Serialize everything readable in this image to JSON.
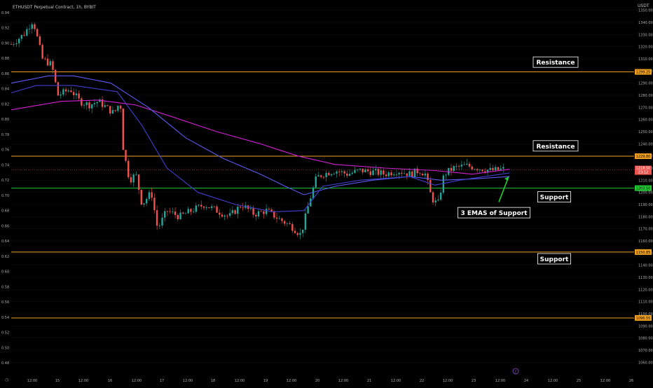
{
  "header": {
    "symbol": "ETHUSDT Perpetual Contract, 1h, BYBIT",
    "currency": "USDT"
  },
  "chart_data": {
    "type": "candlestick",
    "ylim": [
      1055,
      1355
    ],
    "right_ticks": [
      1350,
      1340,
      1330,
      1320,
      1310,
      1300,
      1290,
      1280,
      1270,
      1260,
      1250,
      1240,
      1230,
      1220,
      1210,
      1200,
      1190,
      1180,
      1170,
      1160,
      1150,
      1140,
      1130,
      1120,
      1110,
      1100,
      1090,
      1080,
      1070,
      1060
    ],
    "left_ticks": [
      "0.94",
      "0.92",
      "0.90",
      "0.88",
      "0.86",
      "0.84",
      "0.82",
      "0.80",
      "0.78",
      "0.76",
      "0.74",
      "0.72",
      "0.70",
      "0.68",
      "0.66",
      "0.64",
      "0.62",
      "0.60",
      "0.58",
      "0.56",
      "0.54",
      "0.52",
      "0.50",
      "0.48"
    ],
    "x_ticks": [
      "12:00",
      "15",
      "12:00",
      "16",
      "12:00",
      "17",
      "12:00",
      "18",
      "12:00",
      "19",
      "12:00",
      "20",
      "12:00",
      "21",
      "12:00",
      "22",
      "12:00",
      "23",
      "12:00",
      "24",
      "12:00",
      "25",
      "12:00",
      "26"
    ],
    "price_lines": [
      {
        "price": 1299.25,
        "label": "1299.25",
        "color": "#f0a020"
      },
      {
        "price": 1229.8,
        "label": "1229.80",
        "color": "#f0a020"
      },
      {
        "price": 1203.5,
        "label": "1203.50",
        "color": "#22cc33"
      },
      {
        "price": 1150.85,
        "label": "1150.85",
        "color": "#f0a020"
      },
      {
        "price": 1096.55,
        "label": "1096.55",
        "color": "#f0a020"
      }
    ],
    "current_price": {
      "value": 1218.5,
      "label": "1218.50",
      "countdown": "23:12"
    },
    "annotations": [
      {
        "text": "Resistance",
        "near_price": 1307
      },
      {
        "text": "Resistance",
        "near_price": 1238
      },
      {
        "text": "Support",
        "near_price": 1196
      },
      {
        "text": "Support",
        "near_price": 1145
      },
      {
        "text": "3 EMAS of Support",
        "near_price": 1183
      }
    ],
    "series": [
      {
        "id": "ema_slow",
        "color": "#d020d0",
        "points": [
          [
            0,
            1268
          ],
          [
            0.08,
            1275
          ],
          [
            0.14,
            1276
          ],
          [
            0.2,
            1272
          ],
          [
            0.26,
            1262
          ],
          [
            0.33,
            1250
          ],
          [
            0.4,
            1240
          ],
          [
            0.46,
            1230
          ],
          [
            0.52,
            1223
          ],
          [
            0.6,
            1220
          ],
          [
            0.68,
            1218
          ],
          [
            0.74,
            1215
          ],
          [
            0.8,
            1219
          ]
        ]
      },
      {
        "id": "ema_mid",
        "color": "#5a5af0",
        "points": [
          [
            0,
            1290
          ],
          [
            0.06,
            1296
          ],
          [
            0.1,
            1296
          ],
          [
            0.16,
            1290
          ],
          [
            0.22,
            1270
          ],
          [
            0.28,
            1245
          ],
          [
            0.34,
            1228
          ],
          [
            0.4,
            1215
          ],
          [
            0.44,
            1205
          ],
          [
            0.47,
            1198
          ],
          [
            0.52,
            1205
          ],
          [
            0.58,
            1210
          ],
          [
            0.64,
            1213
          ],
          [
            0.69,
            1210
          ],
          [
            0.74,
            1211
          ],
          [
            0.8,
            1213
          ]
        ]
      },
      {
        "id": "ema_fast",
        "color": "#4040d0",
        "points": [
          [
            0,
            1282
          ],
          [
            0.04,
            1288
          ],
          [
            0.1,
            1288
          ],
          [
            0.17,
            1283
          ],
          [
            0.21,
            1255
          ],
          [
            0.25,
            1220
          ],
          [
            0.3,
            1200
          ],
          [
            0.36,
            1190
          ],
          [
            0.42,
            1184
          ],
          [
            0.47,
            1185
          ],
          [
            0.5,
            1205
          ],
          [
            0.56,
            1210
          ],
          [
            0.64,
            1213
          ],
          [
            0.68,
            1206
          ],
          [
            0.72,
            1210
          ],
          [
            0.8,
            1216
          ]
        ]
      }
    ],
    "path": [
      [
        0,
        1322
      ],
      [
        0.02,
        1330
      ],
      [
        0.035,
        1342
      ],
      [
        0.05,
        1310
      ],
      [
        0.065,
        1305
      ],
      [
        0.075,
        1280
      ],
      [
        0.095,
        1285
      ],
      [
        0.11,
        1275
      ],
      [
        0.125,
        1272
      ],
      [
        0.14,
        1275
      ],
      [
        0.165,
        1265
      ],
      [
        0.175,
        1275
      ],
      [
        0.18,
        1235
      ],
      [
        0.19,
        1210
      ],
      [
        0.2,
        1215
      ],
      [
        0.21,
        1190
      ],
      [
        0.225,
        1200
      ],
      [
        0.235,
        1170
      ],
      [
        0.25,
        1185
      ],
      [
        0.27,
        1180
      ],
      [
        0.29,
        1185
      ],
      [
        0.31,
        1190
      ],
      [
        0.33,
        1185
      ],
      [
        0.35,
        1180
      ],
      [
        0.37,
        1190
      ],
      [
        0.39,
        1182
      ],
      [
        0.41,
        1185
      ],
      [
        0.43,
        1178
      ],
      [
        0.45,
        1172
      ],
      [
        0.465,
        1165
      ],
      [
        0.48,
        1195
      ],
      [
        0.49,
        1212
      ],
      [
        0.5,
        1215
      ],
      [
        0.52,
        1218
      ],
      [
        0.54,
        1215
      ],
      [
        0.56,
        1218
      ],
      [
        0.58,
        1217
      ],
      [
        0.6,
        1215
      ],
      [
        0.62,
        1218
      ],
      [
        0.64,
        1215
      ],
      [
        0.655,
        1218
      ],
      [
        0.665,
        1215
      ],
      [
        0.675,
        1195
      ],
      [
        0.685,
        1190
      ],
      [
        0.695,
        1215
      ],
      [
        0.71,
        1220
      ],
      [
        0.73,
        1222
      ],
      [
        0.75,
        1220
      ],
      [
        0.77,
        1218
      ],
      [
        0.79,
        1219
      ]
    ]
  }
}
